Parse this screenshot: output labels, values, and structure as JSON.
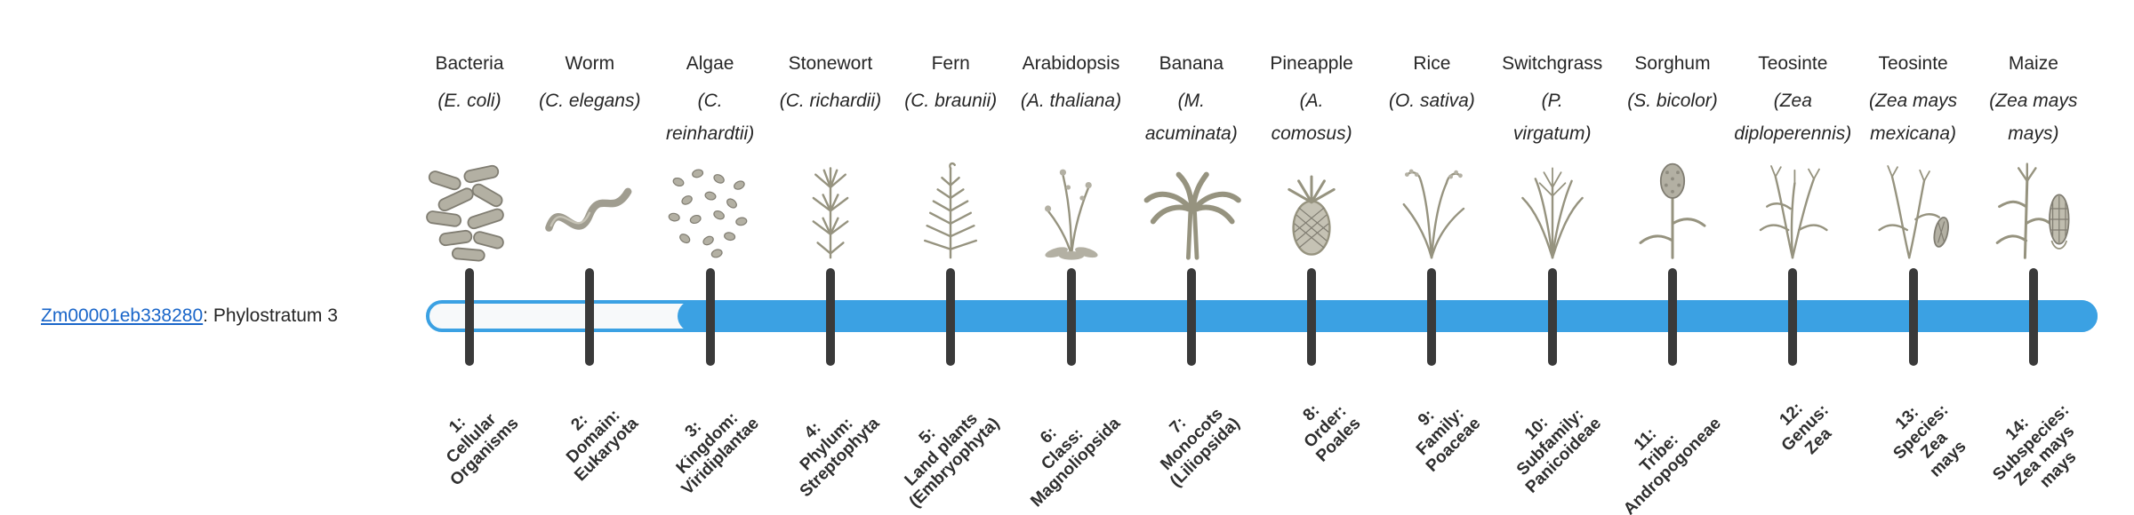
{
  "gene": {
    "id": "Zm00001eb338280",
    "suffix": ": Phylostratum 3"
  },
  "timeline": {
    "phylostratum": 3,
    "fill_start_column": 3,
    "total_strata": 14
  },
  "colors": {
    "bar_blue": "#3BA1E3",
    "track_fill": "#F7F9FA",
    "tick_dark": "#3A3A3A",
    "link_blue": "#1A66C9",
    "text_dark": "#262626",
    "illustration_gray": "#96937F"
  },
  "chart_data": {
    "type": "table",
    "title": "Gene phylostratigraphy timeline",
    "gene": "Zm00001eb338280",
    "phylostratum_assigned": 3,
    "strata": [
      {
        "index": 1,
        "taxon": "Bacteria",
        "species": "(E. coli)",
        "stratum_label": "1: Cellular Organisms"
      },
      {
        "index": 2,
        "taxon": "Worm",
        "species": "(C. elegans)",
        "stratum_label": "2: Domain: Eukaryota"
      },
      {
        "index": 3,
        "taxon": "Algae",
        "species": "(C. reinhardtii)",
        "stratum_label": "3: Kingdom: Viridiplantae"
      },
      {
        "index": 4,
        "taxon": "Stonewort",
        "species": "(C. richardii)",
        "stratum_label": "4: Phylum: Streptophyta"
      },
      {
        "index": 5,
        "taxon": "Fern",
        "species": "(C. braunii)",
        "stratum_label": "5: Land plants (Embryophyta)"
      },
      {
        "index": 6,
        "taxon": "Arabidopsis",
        "species": "(A. thaliana)",
        "stratum_label": "6: Class: Magnoliopsida"
      },
      {
        "index": 7,
        "taxon": "Banana",
        "species": "(M. acuminata)",
        "stratum_label": "7: Monocots (Liliopsida)"
      },
      {
        "index": 8,
        "taxon": "Pineapple",
        "species": "(A. comosus)",
        "stratum_label": "8: Order: Poales"
      },
      {
        "index": 9,
        "taxon": "Rice",
        "species": "(O. sativa)",
        "stratum_label": "9: Family: Poaceae"
      },
      {
        "index": 10,
        "taxon": "Switchgrass",
        "species": "(P. virgatum)",
        "stratum_label": "10: Subfamily: Panicoideae"
      },
      {
        "index": 11,
        "taxon": "Sorghum",
        "species": "(S. bicolor)",
        "stratum_label": "11: Tribe: Andropogoneae"
      },
      {
        "index": 12,
        "taxon": "Teosinte",
        "species": "(Zea diploperennis)",
        "stratum_label": "12: Genus: Zea"
      },
      {
        "index": 13,
        "taxon": "Teosinte",
        "species": "(Zea mays mexicana)",
        "stratum_label": "13: Species: Zea mays"
      },
      {
        "index": 14,
        "taxon": "Maize",
        "species": "(Zea mays mays)",
        "stratum_label": "14: Subspecies: Zea mays mays"
      }
    ]
  },
  "columns": [
    {
      "name": "Bacteria",
      "sci": "(E. coli)",
      "icon": "bacteria",
      "tick_label": "1:\nCellular\nOrganisms"
    },
    {
      "name": "Worm",
      "sci": "(C. elegans)",
      "icon": "worm",
      "tick_label": "2:\nDomain:\nEukaryota"
    },
    {
      "name": "Algae",
      "sci": "(C.\nreinhardtii)",
      "icon": "algae",
      "tick_label": "3:\nKingdom:\nViridiplantae"
    },
    {
      "name": "Stonewort",
      "sci": "(C. richardii)",
      "icon": "stonewort",
      "tick_label": "4:\nPhylum:\nStreptophyta"
    },
    {
      "name": "Fern",
      "sci": "(C. braunii)",
      "icon": "fern",
      "tick_label": "5:\nLand plants\n(Embryophyta)"
    },
    {
      "name": "Arabidopsis",
      "sci": "(A. thaliana)",
      "icon": "arabidopsis",
      "tick_label": "6:\nClass:\nMagnoliopsida"
    },
    {
      "name": "Banana",
      "sci": "(M.\nacuminata)",
      "icon": "banana",
      "tick_label": "7:\nMonocots\n(Liliopsida)"
    },
    {
      "name": "Pineapple",
      "sci": "(A.\ncomosus)",
      "icon": "pineapple",
      "tick_label": "8:\nOrder:\nPoales"
    },
    {
      "name": "Rice",
      "sci": "(O. sativa)",
      "icon": "rice",
      "tick_label": "9:\nFamily:\nPoaceae"
    },
    {
      "name": "Switchgrass",
      "sci": "(P.\nvirgatum)",
      "icon": "switchgrass",
      "tick_label": "10:\nSubfamily:\nPanicoideae"
    },
    {
      "name": "Sorghum",
      "sci": "(S. bicolor)",
      "icon": "sorghum",
      "tick_label": "11:\nTribe:\nAndropogoneae"
    },
    {
      "name": "Teosinte",
      "sci": "(Zea\ndiploperennis)",
      "icon": "teosinte1",
      "tick_label": "12:\nGenus:\nZea"
    },
    {
      "name": "Teosinte",
      "sci": "(Zea mays\nmexicana)",
      "icon": "teosinte2",
      "tick_label": "13:\nSpecies:\nZea\nmays"
    },
    {
      "name": "Maize",
      "sci": "(Zea mays\nmays)",
      "icon": "maize",
      "tick_label": "14:\nSubspecies:\nZea mays\nmays"
    }
  ]
}
